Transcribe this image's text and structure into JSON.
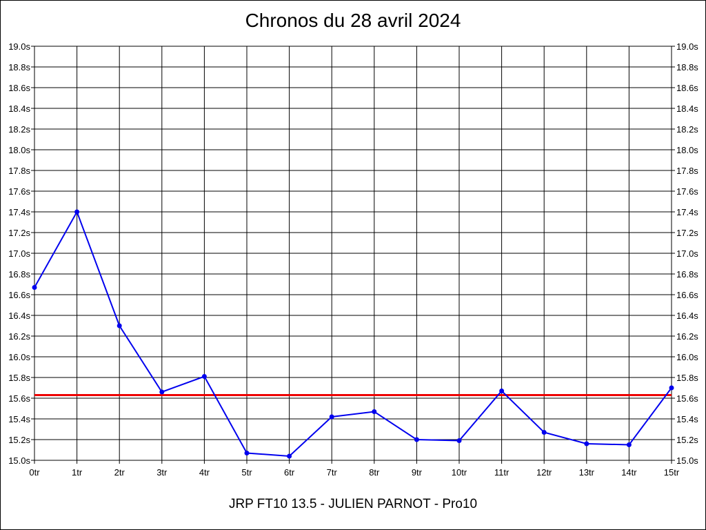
{
  "chart_data": {
    "type": "line",
    "title": "Chronos du 28 avril 2024",
    "caption": "JRP FT10 13.5 - JULIEN PARNOT - Pro10",
    "categories": [
      "0tr",
      "1tr",
      "2tr",
      "3tr",
      "4tr",
      "5tr",
      "6tr",
      "7tr",
      "8tr",
      "9tr",
      "10tr",
      "11tr",
      "12tr",
      "13tr",
      "14tr",
      "15tr"
    ],
    "y_ticks": [
      "15.0s",
      "15.2s",
      "15.4s",
      "15.6s",
      "15.8s",
      "16.0s",
      "16.2s",
      "16.4s",
      "16.6s",
      "16.8s",
      "17.0s",
      "17.2s",
      "17.4s",
      "17.6s",
      "17.8s",
      "18.0s",
      "18.2s",
      "18.4s",
      "18.6s",
      "18.8s",
      "19.0s"
    ],
    "ylim": [
      15.0,
      19.0
    ],
    "ystep": 0.2,
    "grid": true,
    "series": [
      {
        "values": [
          16.67,
          17.4,
          16.3,
          15.66,
          15.81,
          15.07,
          15.04,
          15.42,
          15.47,
          15.2,
          15.19,
          15.67,
          15.27,
          15.16,
          15.15,
          15.7
        ],
        "color": "#0000ee"
      }
    ],
    "reference_line": {
      "value": 15.63,
      "color": "#ee0000"
    }
  }
}
